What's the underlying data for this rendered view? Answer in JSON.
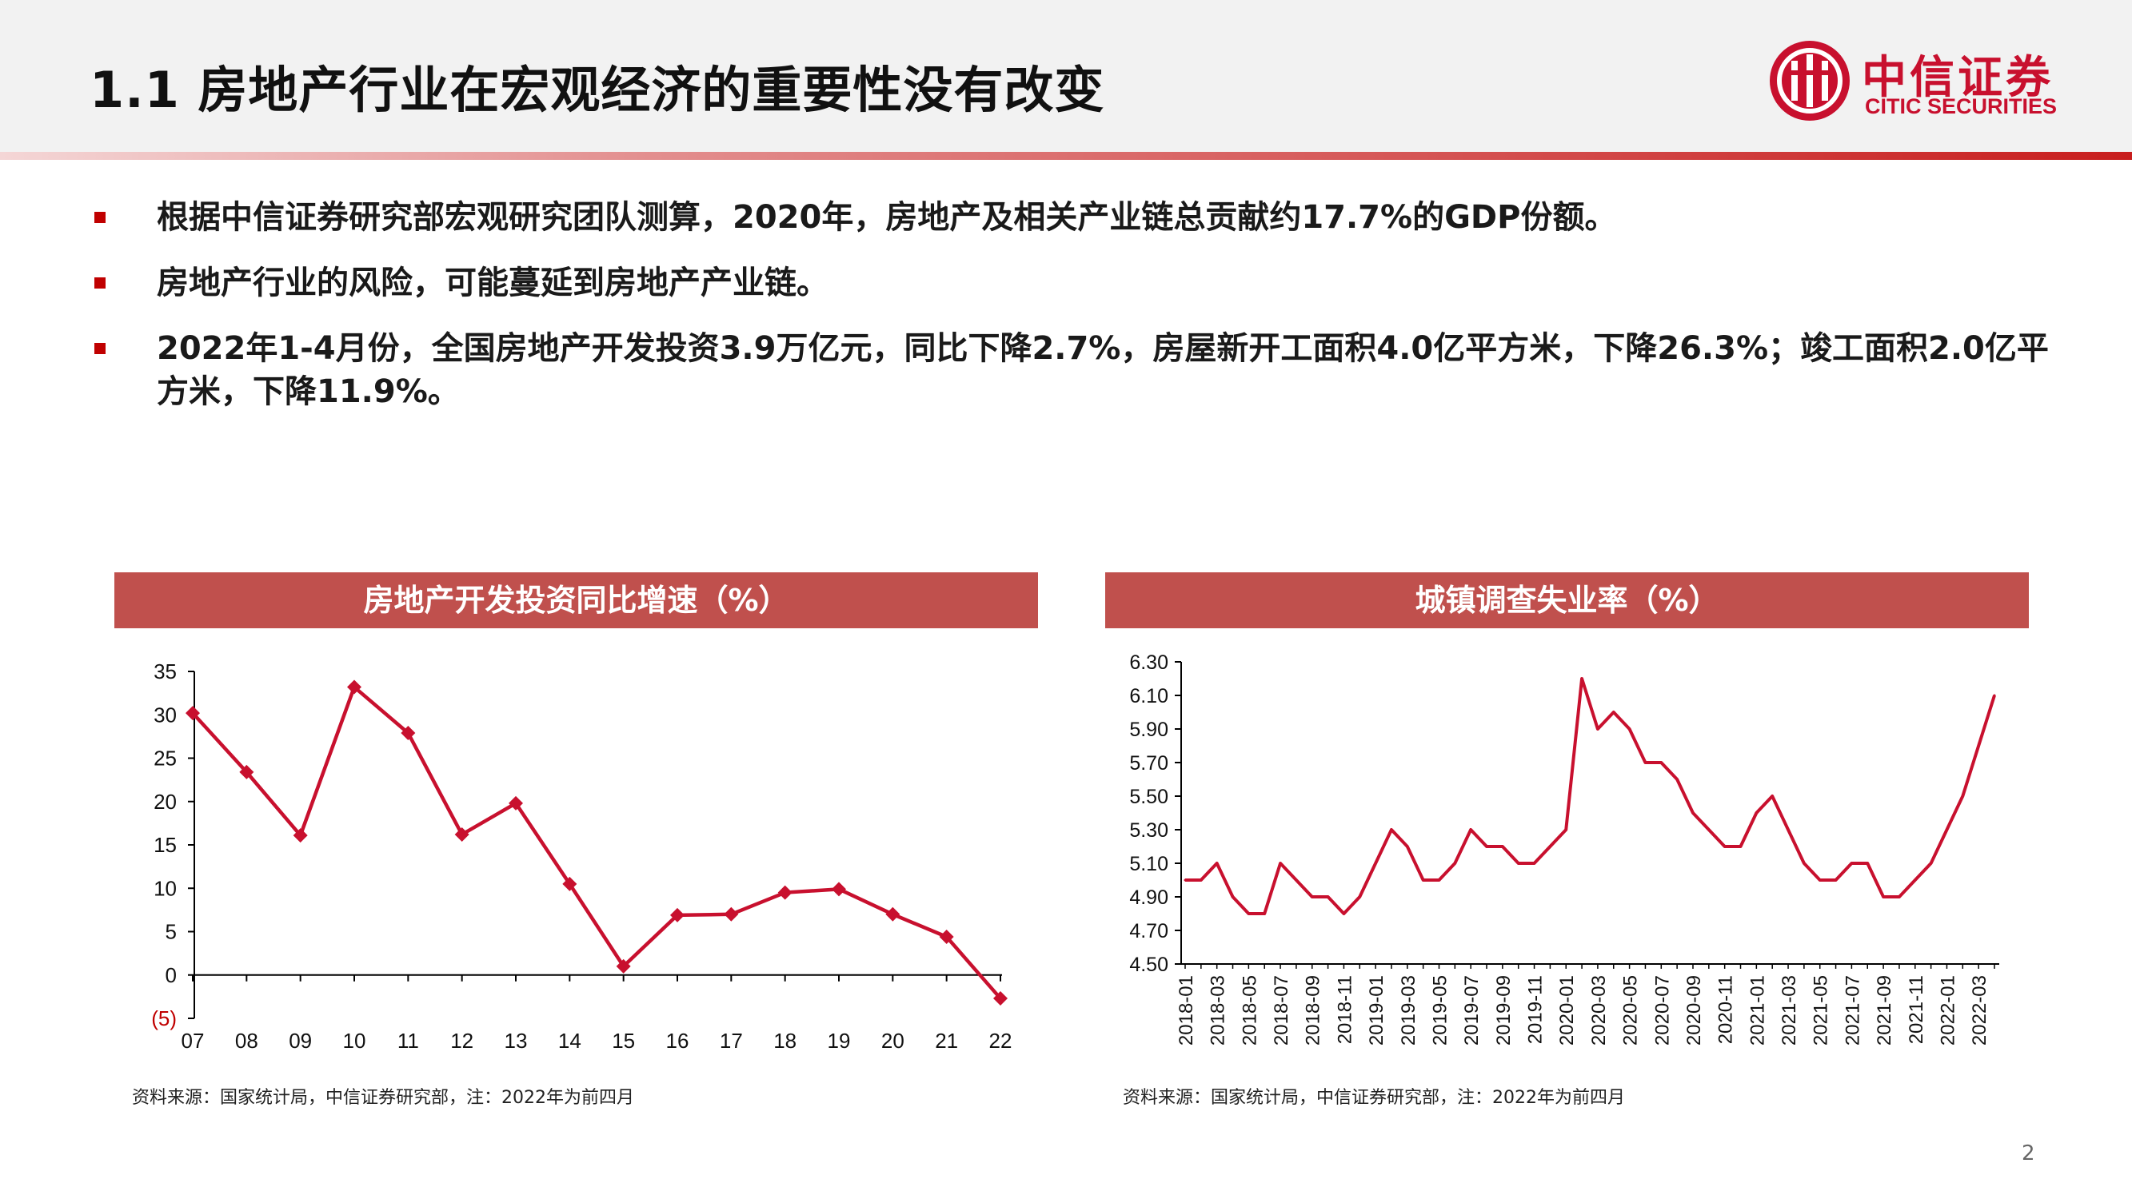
{
  "page": {
    "title": "1.1 房地产行业在宏观经济的重要性没有改变",
    "page_number": "2"
  },
  "logo": {
    "name_cn": "中信证券",
    "name_en": "CITIC SECURITIES",
    "color": "#c8102e"
  },
  "bullets": [
    "根据中信证券研究部宏观研究团队测算，2020年，房地产及相关产业链总贡献约17.7%的GDP份额。",
    "房地产行业的风险，可能蔓延到房地产产业链。",
    "2022年1-4月份，全国房地产开发投资3.9万亿元，同比下降2.7%，房屋新开工面积4.0亿平方米，下降26.3%；竣工面积2.0亿平方米，下降11.9%。"
  ],
  "colors": {
    "accent": "#c00000",
    "header_bg": "#c0504d",
    "line": "#c8102e"
  },
  "chart_data": [
    {
      "type": "line",
      "title": "房地产开发投资同比增速（%）",
      "source": "资料来源：国家统计局，中信证券研究部，注：2022年为前四月",
      "categories": [
        "07",
        "08",
        "09",
        "10",
        "11",
        "12",
        "13",
        "14",
        "15",
        "16",
        "17",
        "18",
        "19",
        "20",
        "21",
        "22"
      ],
      "values": [
        30.2,
        23.4,
        16.1,
        33.2,
        27.9,
        16.2,
        19.8,
        10.5,
        1.0,
        6.9,
        7.0,
        9.5,
        9.9,
        7.0,
        4.4,
        -2.7
      ],
      "ylim": [
        -5,
        35
      ],
      "yticks": [
        35,
        30,
        25,
        20,
        15,
        10,
        5,
        0,
        -5
      ],
      "ytick_labels": [
        "35",
        "30",
        "25",
        "20",
        "15",
        "10",
        "5",
        "0",
        "(5)"
      ],
      "marker": "diamond",
      "grid": false
    },
    {
      "type": "line",
      "title": "城镇调查失业率（%）",
      "source": "资料来源：国家统计局，中信证券研究部，注：2022年为前四月",
      "x": [
        "2018-01",
        "2018-02",
        "2018-03",
        "2018-04",
        "2018-05",
        "2018-06",
        "2018-07",
        "2018-08",
        "2018-09",
        "2018-10",
        "2018-11",
        "2018-12",
        "2019-01",
        "2019-02",
        "2019-03",
        "2019-04",
        "2019-05",
        "2019-06",
        "2019-07",
        "2019-08",
        "2019-09",
        "2019-10",
        "2019-11",
        "2019-12",
        "2020-01",
        "2020-02",
        "2020-03",
        "2020-04",
        "2020-05",
        "2020-06",
        "2020-07",
        "2020-08",
        "2020-09",
        "2020-10",
        "2020-11",
        "2020-12",
        "2021-01",
        "2021-02",
        "2021-03",
        "2021-04",
        "2021-05",
        "2021-06",
        "2021-07",
        "2021-08",
        "2021-09",
        "2021-10",
        "2021-11",
        "2021-12",
        "2022-01",
        "2022-02",
        "2022-03",
        "2022-04"
      ],
      "x_tick_labels": [
        "2018-01",
        "2018-03",
        "2018-05",
        "2018-07",
        "2018-09",
        "2018-11",
        "2019-01",
        "2019-03",
        "2019-05",
        "2019-07",
        "2019-09",
        "2019-11",
        "2020-01",
        "2020-03",
        "2020-05",
        "2020-07",
        "2020-09",
        "2020-11",
        "2021-01",
        "2021-03",
        "2021-05",
        "2021-07",
        "2021-09",
        "2021-11",
        "2022-01",
        "2022-03"
      ],
      "values": [
        5.0,
        5.0,
        5.1,
        4.9,
        4.8,
        4.8,
        5.1,
        5.0,
        4.9,
        4.9,
        4.8,
        4.9,
        5.1,
        5.3,
        5.2,
        5.0,
        5.0,
        5.1,
        5.3,
        5.2,
        5.2,
        5.1,
        5.1,
        5.2,
        5.3,
        6.2,
        5.9,
        6.0,
        5.9,
        5.7,
        5.7,
        5.6,
        5.4,
        5.3,
        5.2,
        5.2,
        5.4,
        5.5,
        5.3,
        5.1,
        5.0,
        5.0,
        5.1,
        5.1,
        4.9,
        4.9,
        5.0,
        5.1,
        5.3,
        5.5,
        5.8,
        6.1
      ],
      "ylim": [
        4.5,
        6.3
      ],
      "yticks": [
        6.3,
        6.1,
        5.9,
        5.7,
        5.5,
        5.3,
        5.1,
        4.9,
        4.7,
        4.5
      ],
      "ytick_labels": [
        "6.30",
        "6.10",
        "5.90",
        "5.70",
        "5.50",
        "5.30",
        "5.10",
        "4.90",
        "4.70",
        "4.50"
      ],
      "grid": false
    }
  ]
}
